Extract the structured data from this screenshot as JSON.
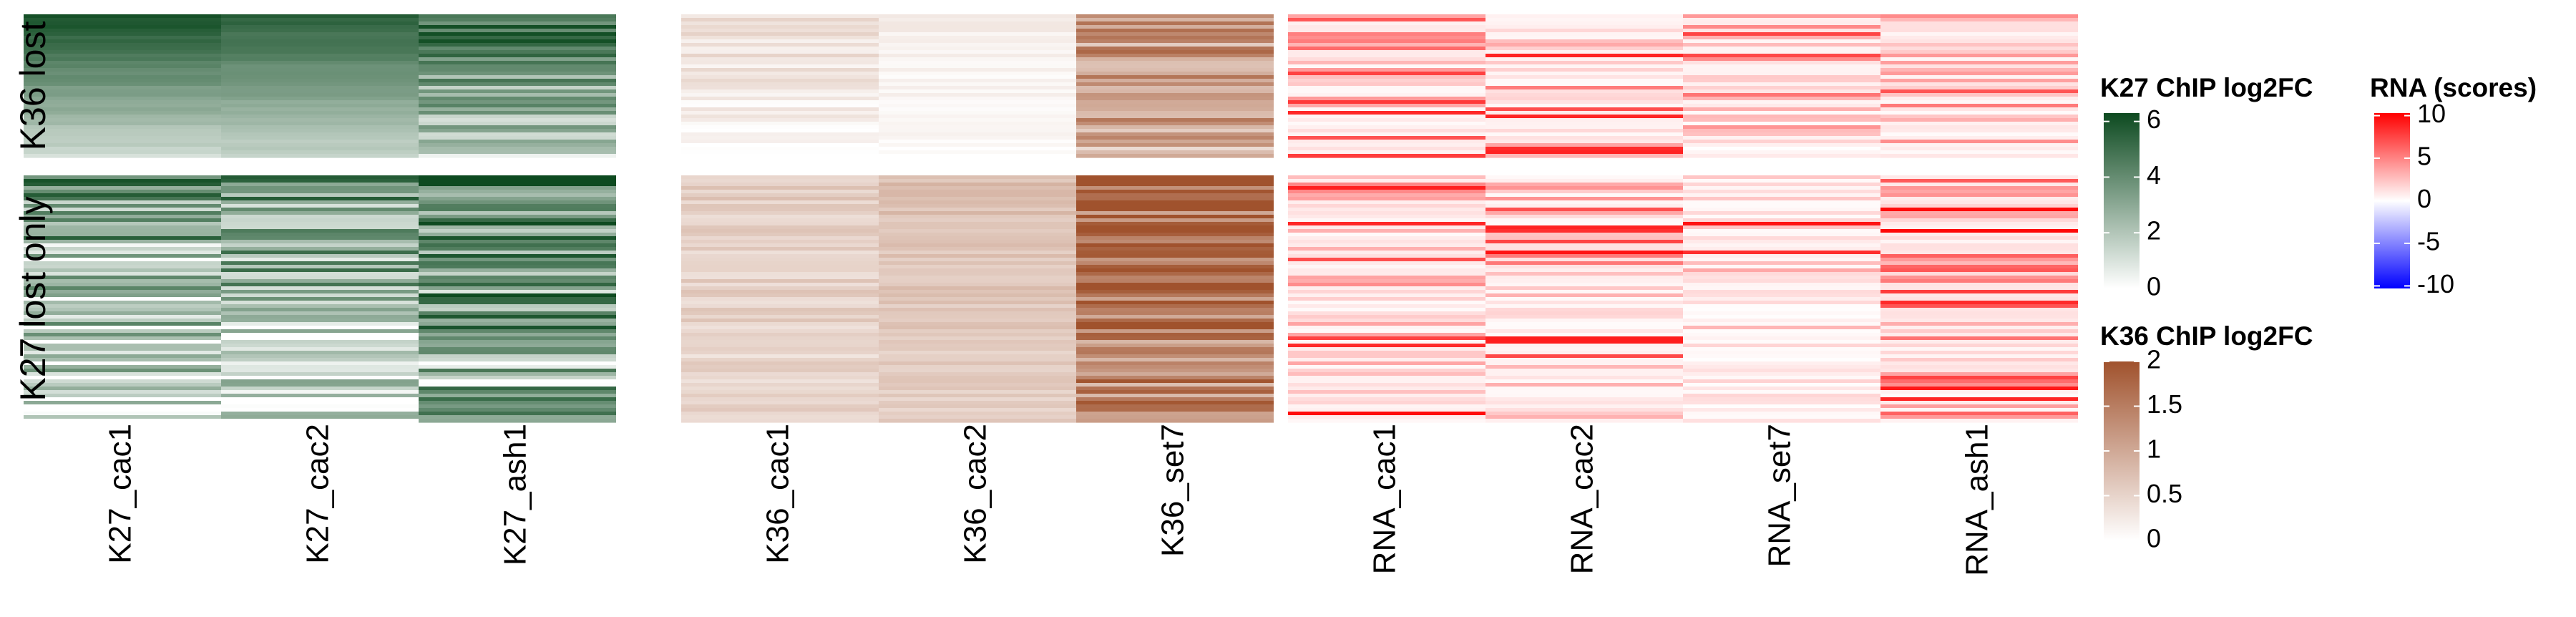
{
  "chart_data": {
    "type": "heatmap",
    "row_groups": [
      {
        "label": "K36 lost",
        "relative_size": 0.36
      },
      {
        "label": "K27 lost only",
        "relative_size": 0.64
      }
    ],
    "column_blocks": [
      {
        "name": "K27 ChIP",
        "color_scale": "k27",
        "columns": [
          "K27_cac1",
          "K27_cac2",
          "K27_ash1"
        ]
      },
      {
        "name": "K36 ChIP",
        "color_scale": "k36",
        "columns": [
          "K36_cac1",
          "K36_cac2",
          "K36_set7"
        ]
      },
      {
        "name": "RNA",
        "color_scale": "rna",
        "columns": [
          "RNA_cac1",
          "RNA_cac2",
          "RNA_set7",
          "RNA_ash1"
        ]
      }
    ],
    "legends": [
      {
        "key": "k27",
        "title": "K27 ChIP log2FC",
        "range": [
          0,
          6.3
        ],
        "ticks": [
          "6",
          "4",
          "2",
          "0"
        ],
        "tick_values": [
          6,
          4,
          2,
          0
        ],
        "colors": [
          "#ffffff",
          "#0d4a20"
        ]
      },
      {
        "key": "k36",
        "title": "K36 ChIP log2FC",
        "range": [
          0,
          2
        ],
        "ticks": [
          "2",
          "1.5",
          "1",
          "0.5",
          "0"
        ],
        "tick_values": [
          2,
          1.5,
          1,
          0.5,
          0
        ],
        "colors": [
          "#ffffff",
          "#a0522d"
        ]
      },
      {
        "key": "rna",
        "title": "RNA (scores)",
        "range": [
          -10.3,
          10.3
        ],
        "ticks": [
          "10",
          "5",
          "0",
          "-5",
          "-10"
        ],
        "tick_values": [
          10,
          5,
          0,
          -5,
          -10
        ],
        "colors": [
          "#0000ff",
          "#ffffff",
          "#ff0000"
        ]
      }
    ],
    "column_profiles": {
      "K27_cac1": {
        "g1": [
          6.0,
          1.2,
          0.05
        ],
        "g2": [
          4.0,
          0.3,
          0.7
        ]
      },
      "K27_cac2": {
        "g1": [
          5.5,
          1.5,
          0.05
        ],
        "g2": [
          4.0,
          0.4,
          0.65
        ]
      },
      "K27_ash1": {
        "g1": [
          5.0,
          1.5,
          0.35
        ],
        "g2": [
          5.0,
          2.0,
          0.6
        ]
      },
      "K36_cac1": {
        "g1": [
          0.4,
          0.1,
          0.2
        ],
        "g2": [
          0.6,
          0.45,
          0.2
        ]
      },
      "K36_cac2": {
        "g1": [
          0.2,
          0.05,
          0.1
        ],
        "g2": [
          0.75,
          0.55,
          0.15
        ]
      },
      "K36_set7": {
        "g1": [
          1.2,
          1.0,
          0.5
        ],
        "g2": [
          1.75,
          1.3,
          0.4
        ]
      },
      "RNA_cac1": {
        "g1": [
          4.0,
          3.0,
          0.6
        ],
        "g2": [
          4.0,
          3.0,
          0.6
        ]
      },
      "RNA_cac2": {
        "g1": [
          3.5,
          2.5,
          0.55
        ],
        "g2": [
          3.5,
          2.5,
          0.55
        ]
      },
      "RNA_set7": {
        "g1": [
          5.0,
          3.0,
          0.6
        ],
        "g2": [
          2.5,
          1.0,
          0.45
        ]
      },
      "RNA_ash1": {
        "g1": [
          6.0,
          3.5,
          0.6
        ],
        "g2": [
          7.0,
          5.0,
          0.55
        ]
      }
    }
  }
}
